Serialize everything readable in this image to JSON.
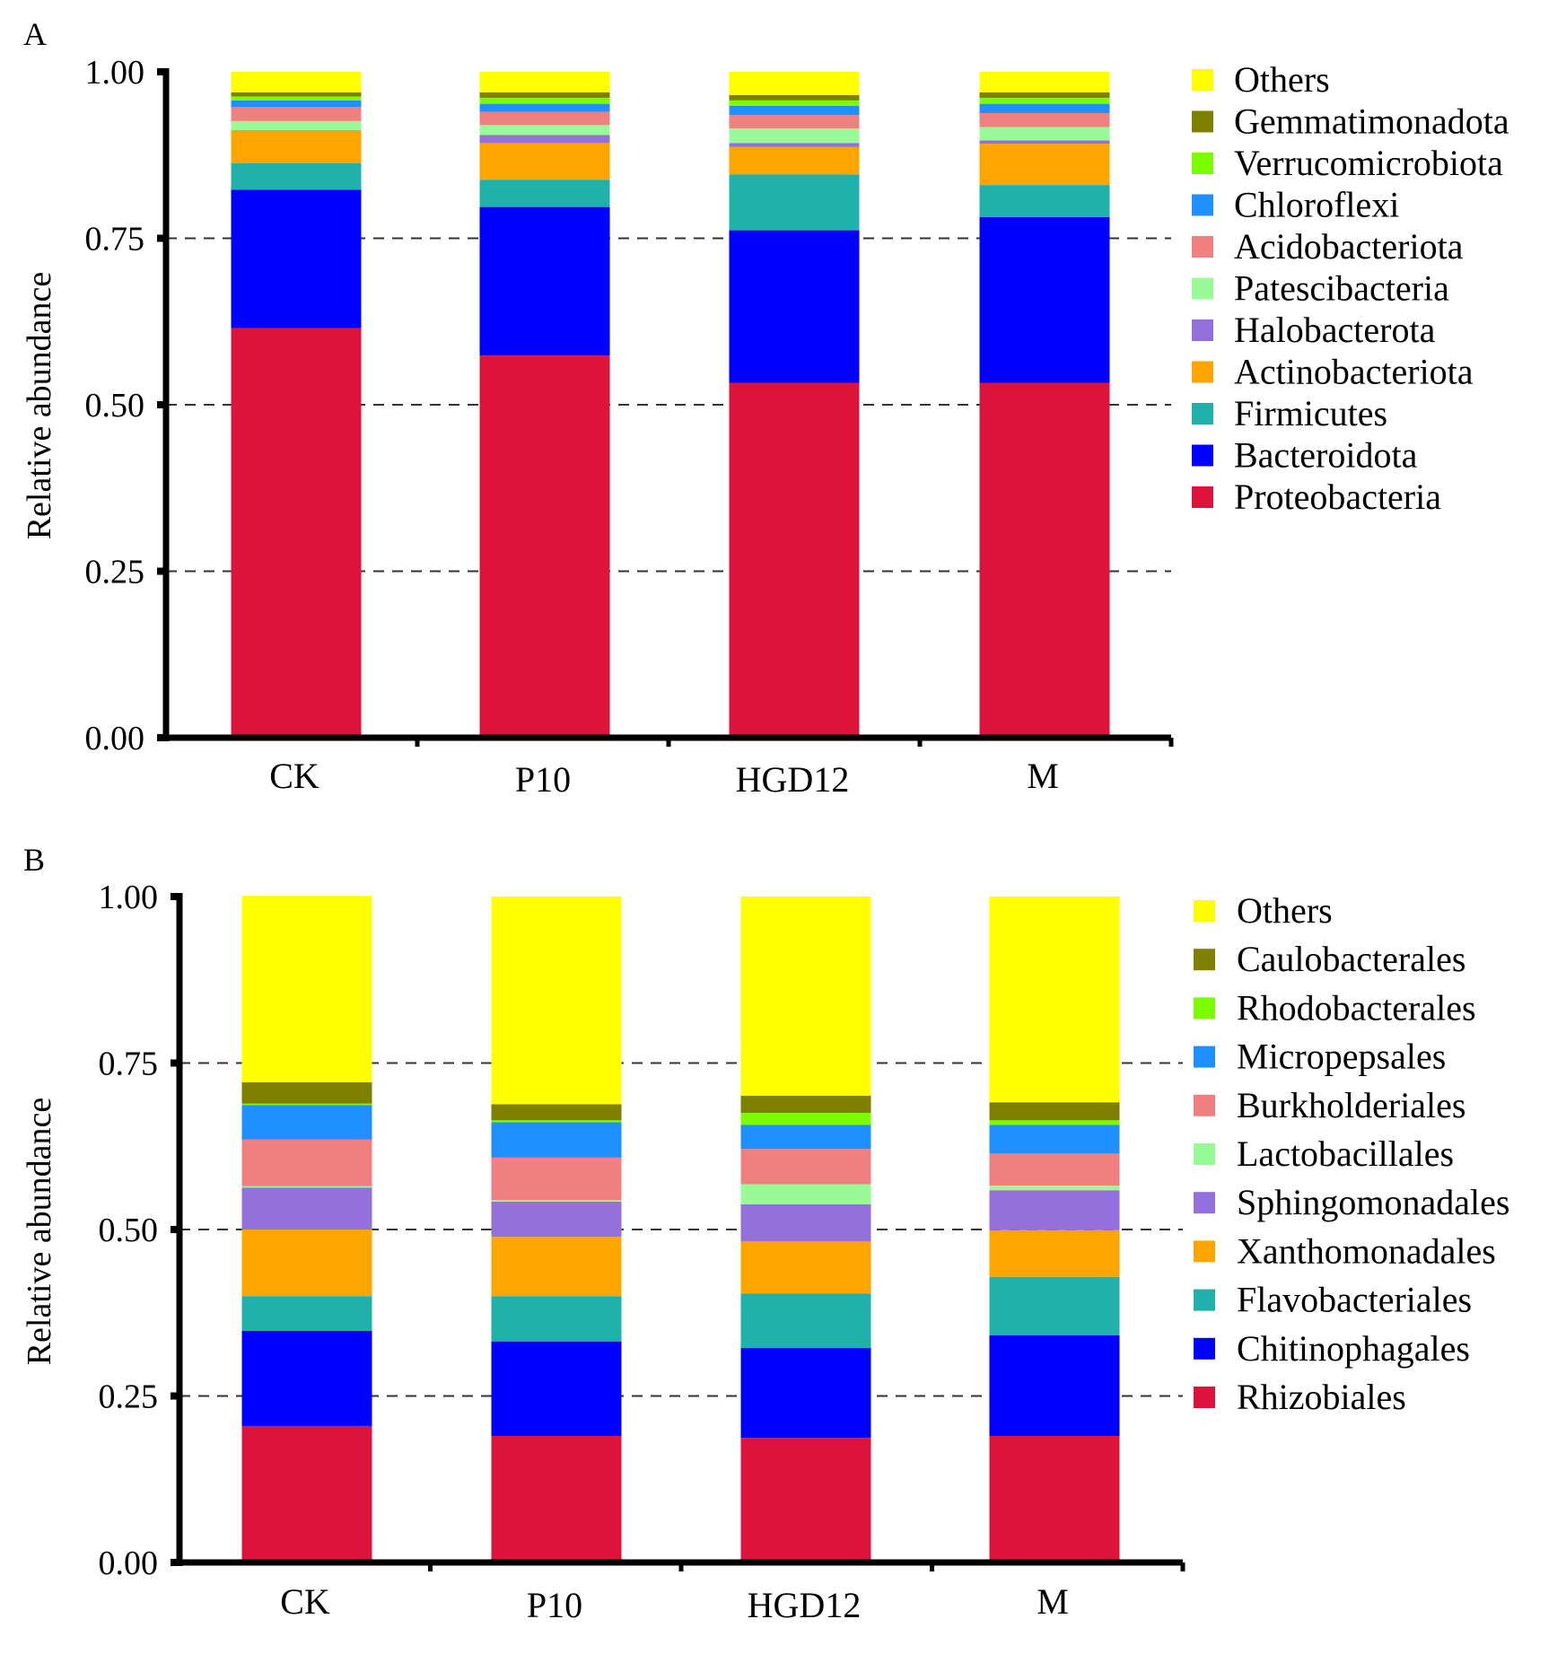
{
  "chart_data": [
    {
      "type": "bar",
      "stacked": true,
      "panel_label": "A",
      "title": "",
      "xlabel": "",
      "ylabel": "Relative abundance",
      "ylim": [
        0,
        1
      ],
      "yticks": [
        "0.00",
        "0.25",
        "0.50",
        "0.75",
        "1.00"
      ],
      "ytick_values": [
        0,
        0.25,
        0.5,
        0.75,
        1.0
      ],
      "grid": "dashed horizontal at 0.25, 0.50, 0.75",
      "legend_position": "right",
      "categories": [
        "CK",
        "P10",
        "HGD12",
        "M"
      ],
      "series": [
        {
          "name": "Proteobacteria",
          "color": "#DC143C",
          "values": [
            0.615,
            0.574,
            0.533,
            0.533
          ]
        },
        {
          "name": "Bacteroidota",
          "color": "#0000FF",
          "values": [
            0.208,
            0.223,
            0.229,
            0.249
          ]
        },
        {
          "name": "Firmicutes",
          "color": "#20B2AA",
          "values": [
            0.04,
            0.041,
            0.084,
            0.048
          ]
        },
        {
          "name": "Actinobacteriota",
          "color": "#FFA500",
          "values": [
            0.048,
            0.055,
            0.041,
            0.062
          ]
        },
        {
          "name": "Halobacterota",
          "color": "#9370DB",
          "values": [
            0.001,
            0.012,
            0.006,
            0.005
          ]
        },
        {
          "name": "Patescibacteria",
          "color": "#98FB98",
          "values": [
            0.014,
            0.015,
            0.022,
            0.02
          ]
        },
        {
          "name": "Acidobacteriota",
          "color": "#F08080",
          "values": [
            0.021,
            0.02,
            0.02,
            0.021
          ]
        },
        {
          "name": "Chloroflexi",
          "color": "#1E90FF",
          "values": [
            0.01,
            0.012,
            0.014,
            0.014
          ]
        },
        {
          "name": "Verrucomicrobiota",
          "color": "#7CFC00",
          "values": [
            0.006,
            0.009,
            0.008,
            0.009
          ]
        },
        {
          "name": "Gemmatimonadota",
          "color": "#808000",
          "values": [
            0.006,
            0.008,
            0.008,
            0.008
          ]
        },
        {
          "name": "Others",
          "color": "#FFFF00",
          "values": [
            0.031,
            0.031,
            0.035,
            0.031
          ]
        }
      ],
      "legend_order": [
        "Others",
        "Gemmatimonadota",
        "Verrucomicrobiota",
        "Chloroflexi",
        "Acidobacteriota",
        "Patescibacteria",
        "Halobacterota",
        "Actinobacteriota",
        "Firmicutes",
        "Bacteroidota",
        "Proteobacteria"
      ]
    },
    {
      "type": "bar",
      "stacked": true,
      "panel_label": "B",
      "title": "",
      "xlabel": "",
      "ylabel": "Relative abundance",
      "ylim": [
        0,
        1
      ],
      "yticks": [
        "0.00",
        "0.25",
        "0.50",
        "0.75",
        "1.00"
      ],
      "ytick_values": [
        0,
        0.25,
        0.5,
        0.75,
        1.0
      ],
      "grid": "dashed horizontal at 0.25, 0.50, 0.75",
      "legend_position": "right",
      "categories": [
        "CK",
        "P10",
        "HGD12",
        "M"
      ],
      "series": [
        {
          "name": "Rhizobiales",
          "color": "#DC143C",
          "values": [
            0.205,
            0.19,
            0.187,
            0.19
          ]
        },
        {
          "name": "Chitinophagales",
          "color": "#0000FF",
          "values": [
            0.143,
            0.142,
            0.135,
            0.151
          ]
        },
        {
          "name": "Flavobacteriales",
          "color": "#20B2AA",
          "values": [
            0.052,
            0.068,
            0.082,
            0.088
          ]
        },
        {
          "name": "Xanthomonadales",
          "color": "#FFA500",
          "values": [
            0.1,
            0.089,
            0.078,
            0.07
          ]
        },
        {
          "name": "Sphingomonadales",
          "color": "#9370DB",
          "values": [
            0.063,
            0.053,
            0.056,
            0.06
          ]
        },
        {
          "name": "Lactobacillales",
          "color": "#98FB98",
          "values": [
            0.002,
            0.002,
            0.03,
            0.007
          ]
        },
        {
          "name": "Burkholderiales",
          "color": "#F08080",
          "values": [
            0.07,
            0.064,
            0.053,
            0.048
          ]
        },
        {
          "name": "Micropepsales",
          "color": "#1E90FF",
          "values": [
            0.052,
            0.053,
            0.036,
            0.043
          ]
        },
        {
          "name": "Rhodobacterales",
          "color": "#7CFC00",
          "values": [
            0.002,
            0.003,
            0.018,
            0.007
          ]
        },
        {
          "name": "Caulobacterales",
          "color": "#808000",
          "values": [
            0.032,
            0.024,
            0.026,
            0.027
          ]
        },
        {
          "name": "Others",
          "color": "#FFFF00",
          "values": [
            0.28,
            0.312,
            0.299,
            0.309
          ]
        }
      ],
      "legend_order": [
        "Others",
        "Caulobacterales",
        "Rhodobacterales",
        "Micropepsales",
        "Burkholderiales",
        "Lactobacillales",
        "Sphingomonadales",
        "Xanthomonadales",
        "Flavobacteriales",
        "Chitinophagales",
        "Rhizobiales"
      ]
    }
  ]
}
